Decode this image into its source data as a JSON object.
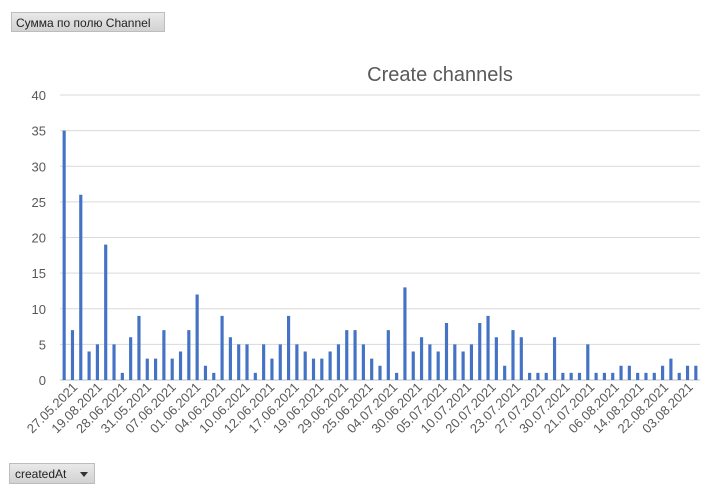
{
  "pivot": {
    "values_field": "Сумма по полю Channel",
    "axis_field": "createdAt"
  },
  "colors": {
    "bar": "#4472C4",
    "grid": "#d9d9d9",
    "text": "#595959"
  },
  "chart_data": {
    "type": "bar",
    "title": "Create channels",
    "xlabel": "",
    "ylabel": "",
    "ylim": [
      0,
      40
    ],
    "yticks": [
      0,
      5,
      10,
      15,
      20,
      25,
      30,
      35,
      40
    ],
    "grid": true,
    "legend": "none",
    "visible_x_labels": [
      "27.05.2021",
      "19.08.2021",
      "28.06.2021",
      "31.05.2021",
      "07.06.2021",
      "01.06.2021",
      "04.06.2021",
      "10.06.2021",
      "12.06.2021",
      "17.06.2021",
      "19.06.2021",
      "29.06.2021",
      "25.06.2021",
      "04.07.2021",
      "30.06.2021",
      "05.07.2021",
      "10.07.2021",
      "20.07.2021",
      "23.07.2021",
      "27.07.2021",
      "30.07.2021",
      "21.07.2021",
      "06.08.2021",
      "14.08.2021",
      "22.08.2021",
      "03.08.2021"
    ],
    "values": [
      35,
      7,
      26,
      4,
      5,
      19,
      5,
      1,
      6,
      9,
      3,
      3,
      7,
      3,
      4,
      7,
      12,
      2,
      1,
      9,
      6,
      5,
      5,
      1,
      5,
      3,
      5,
      9,
      5,
      4,
      3,
      3,
      4,
      5,
      7,
      7,
      5,
      3,
      2,
      7,
      1,
      13,
      4,
      6,
      5,
      4,
      8,
      5,
      4,
      5,
      8,
      9,
      6,
      2,
      7,
      6,
      1,
      1,
      1,
      6,
      1,
      1,
      1,
      5,
      1,
      1,
      1,
      2,
      2,
      1,
      1,
      1,
      2,
      3,
      1,
      2,
      2
    ]
  }
}
